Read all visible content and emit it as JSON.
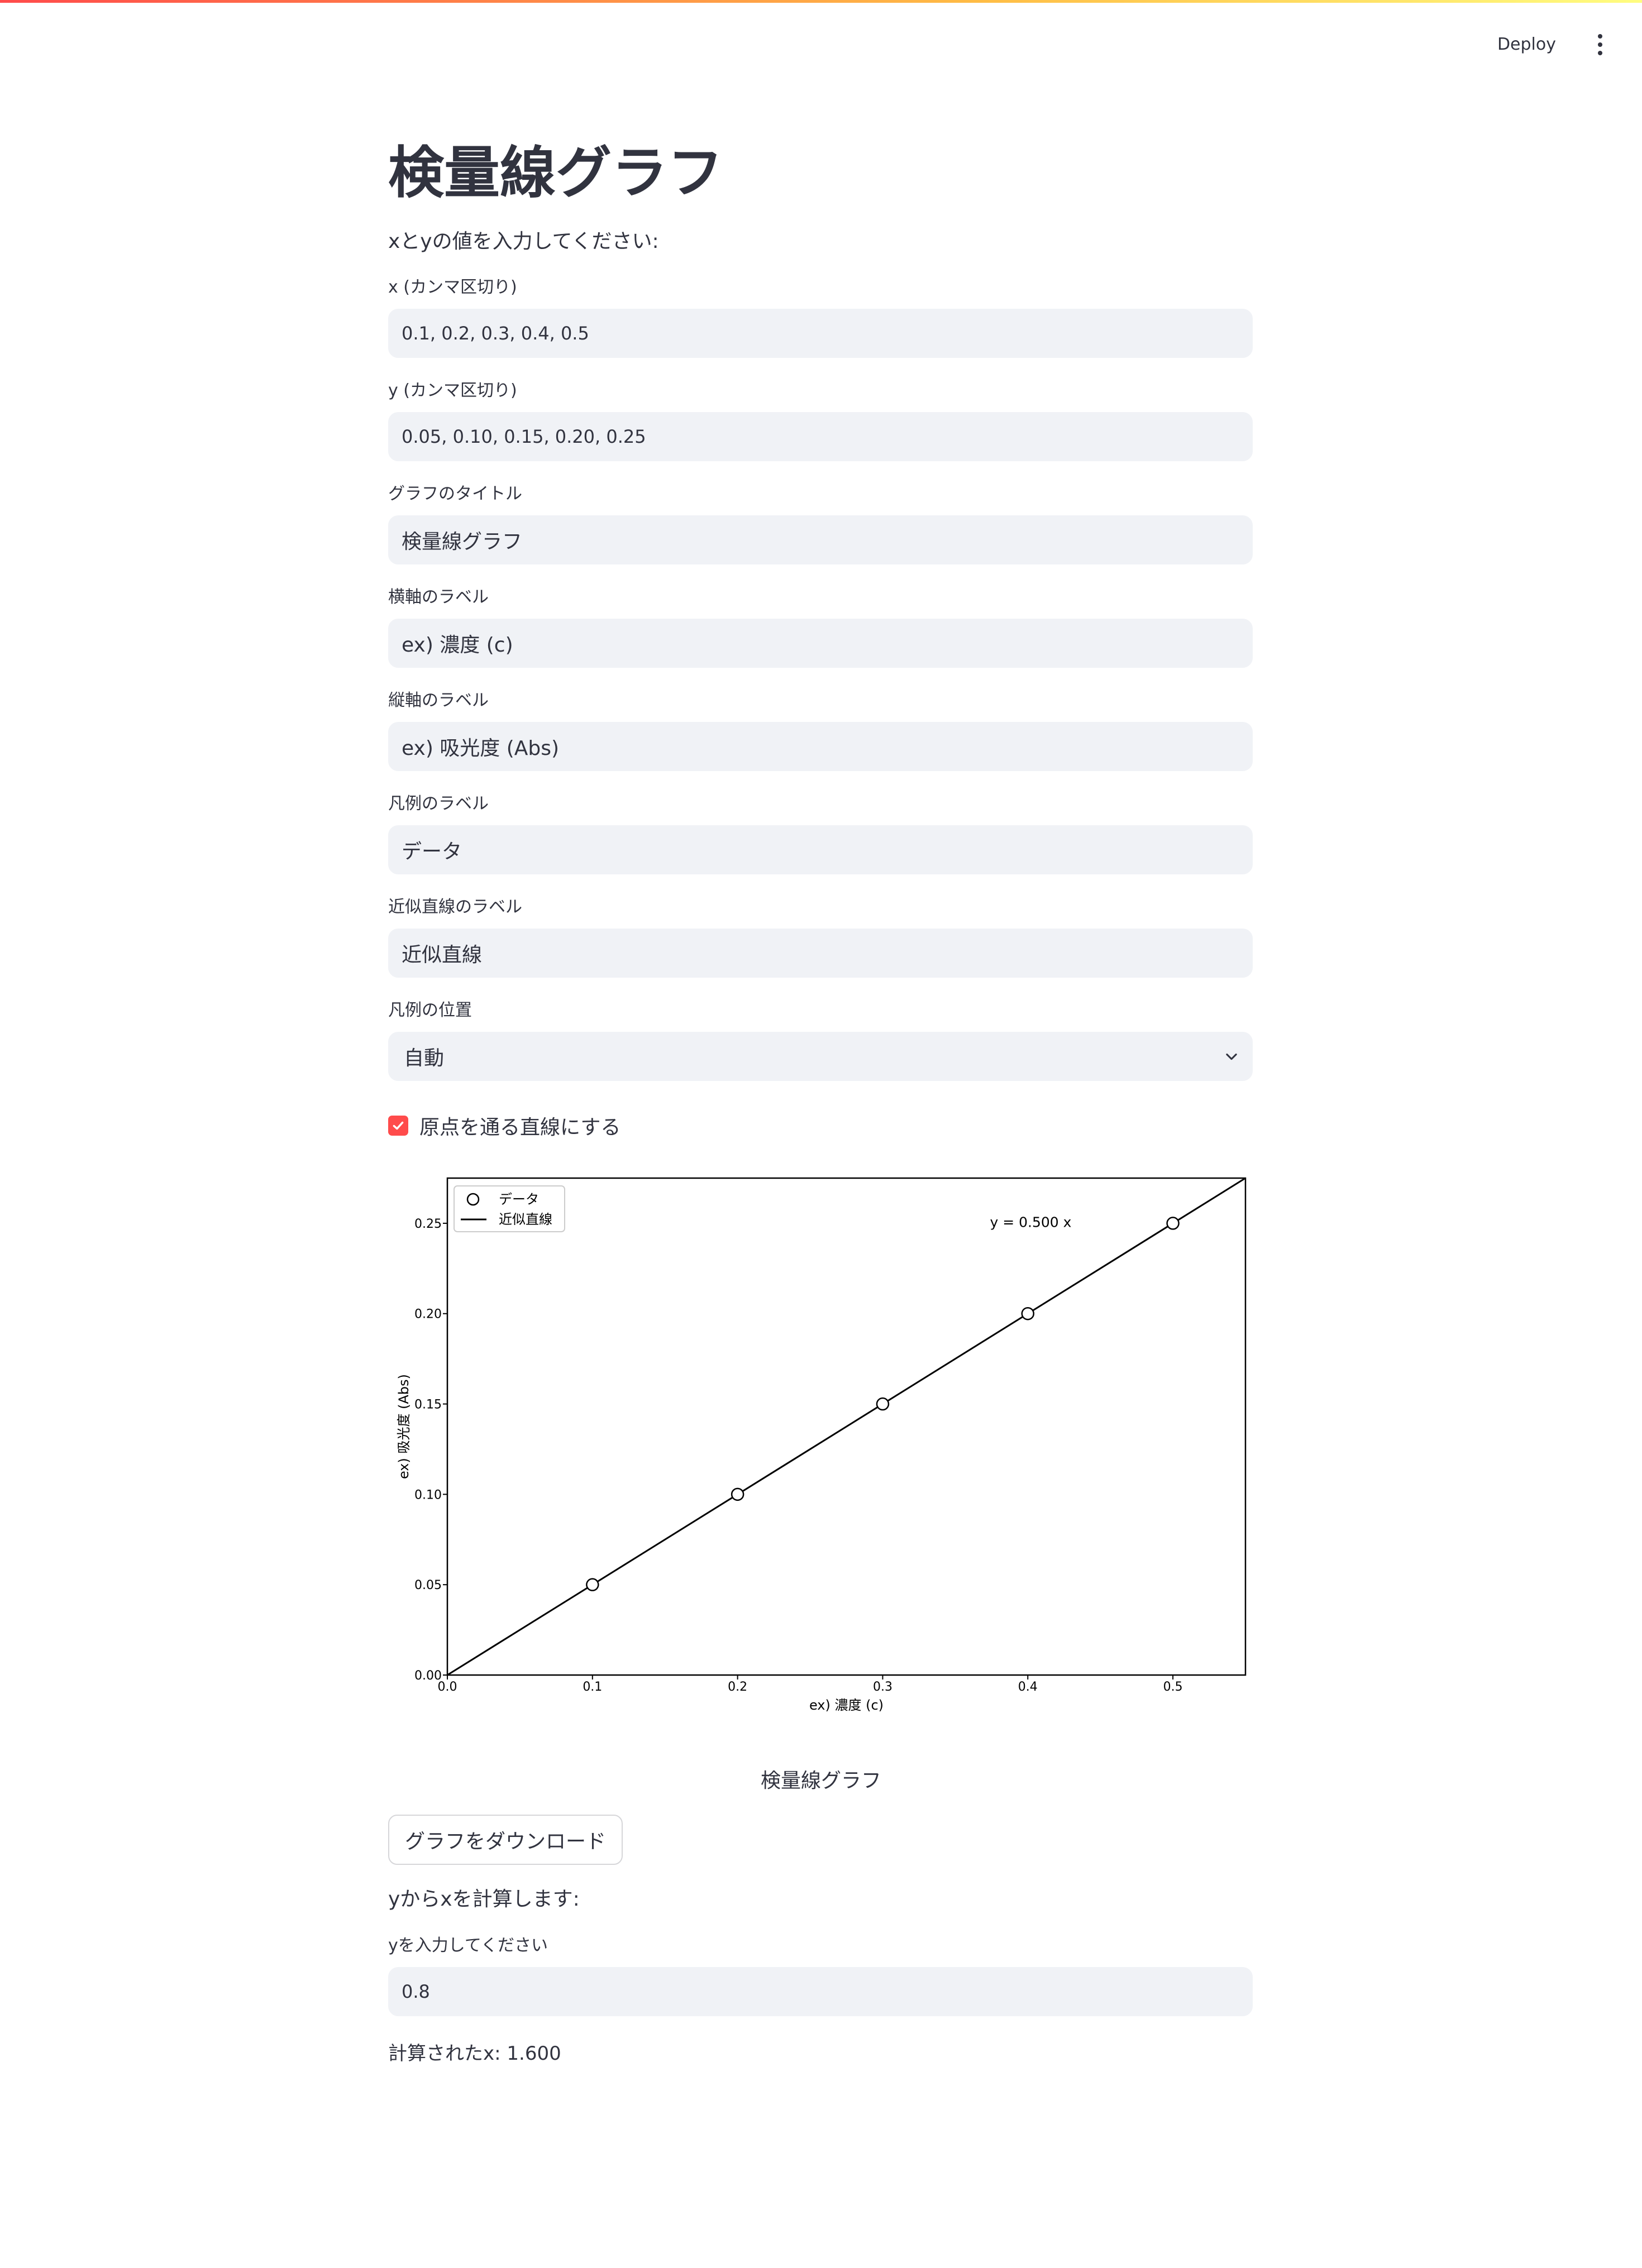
{
  "header": {
    "deploy_label": "Deploy",
    "menu_icon": "vertical-ellipsis-icon"
  },
  "page": {
    "title": "検量線グラフ",
    "intro": "xとyの値を入力してください:"
  },
  "inputs": {
    "x": {
      "label": "x (カンマ区切り)",
      "value": "0.1, 0.2, 0.3, 0.4, 0.5"
    },
    "y": {
      "label": "y (カンマ区切り)",
      "value": "0.05, 0.10, 0.15, 0.20, 0.25"
    },
    "graph_title": {
      "label": "グラフのタイトル",
      "value": "検量線グラフ"
    },
    "x_label": {
      "label": "横軸のラベル",
      "value": "ex) 濃度 (c)"
    },
    "y_label": {
      "label": "縦軸のラベル",
      "value": "ex) 吸光度 (Abs)"
    },
    "legend_label": {
      "label": "凡例のラベル",
      "value": "データ"
    },
    "fit_label": {
      "label": "近似直線のラベル",
      "value": "近似直線"
    },
    "legend_position": {
      "label": "凡例の位置",
      "value": "自動"
    },
    "through_origin": {
      "label": "原点を通る直線にする",
      "checked": true
    }
  },
  "chart_data": {
    "type": "scatter",
    "xlabel": "ex) 濃度 (c)",
    "ylabel": "ex) 吸光度 (Abs)",
    "xlim": [
      0,
      0.55
    ],
    "ylim": [
      0,
      0.275
    ],
    "xticks": [
      "0.0",
      "0.1",
      "0.2",
      "0.3",
      "0.4",
      "0.5"
    ],
    "yticks": [
      "0.00",
      "0.05",
      "0.10",
      "0.15",
      "0.20",
      "0.25"
    ],
    "grid": false,
    "legend_placement": "top-left",
    "series": [
      {
        "name": "データ",
        "kind": "scatter",
        "x": [
          0.1,
          0.2,
          0.3,
          0.4,
          0.5
        ],
        "y": [
          0.05,
          0.1,
          0.15,
          0.2,
          0.25
        ]
      },
      {
        "name": "近似直線",
        "kind": "line",
        "slope": 0.5,
        "intercept": 0
      }
    ],
    "annotation": "y = 0.500 x"
  },
  "chart_caption": "検量線グラフ",
  "download": {
    "label": "グラフをダウンロード"
  },
  "calc": {
    "heading": "yからxを計算します:",
    "input_label": "yを入力してください",
    "input_value": "0.8",
    "result": "計算されたx: 1.600"
  }
}
